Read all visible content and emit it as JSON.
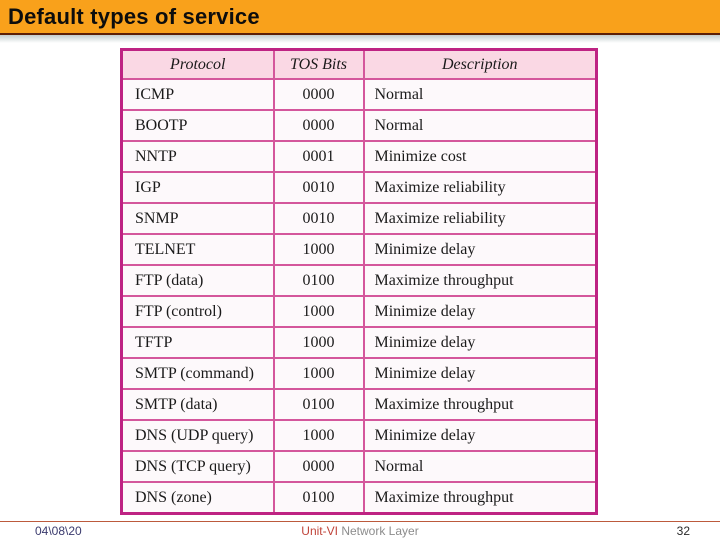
{
  "slide": {
    "title": "Default types of service",
    "colors": {
      "title_bar": "#F9A11B",
      "title_bar_edge": "#5C1E05",
      "table_border_outer": "#BE2383",
      "table_border_inner": "#D4579C",
      "table_header_bg": "#FAD8E4",
      "footer_line": "#BC5A3C",
      "footer_unit_red": "#C0443A",
      "footer_section_gray": "#8C8C8C",
      "footer_date_navy": "#3B3B6E"
    },
    "table": {
      "headers": [
        "Protocol",
        "TOS Bits",
        "Description"
      ],
      "rows": [
        [
          "ICMP",
          "0000",
          "Normal"
        ],
        [
          "BOOTP",
          "0000",
          "Normal"
        ],
        [
          "NNTP",
          "0001",
          "Minimize cost"
        ],
        [
          "IGP",
          "0010",
          "Maximize reliability"
        ],
        [
          "SNMP",
          "0010",
          "Maximize reliability"
        ],
        [
          "TELNET",
          "1000",
          "Minimize delay"
        ],
        [
          "FTP (data)",
          "0100",
          "Maximize throughput"
        ],
        [
          "FTP (control)",
          "1000",
          "Minimize delay"
        ],
        [
          "TFTP",
          "1000",
          "Minimize delay"
        ],
        [
          "SMTP (command)",
          "1000",
          "Minimize delay"
        ],
        [
          "SMTP (data)",
          "0100",
          "Maximize throughput"
        ],
        [
          "DNS (UDP query)",
          "1000",
          "Minimize delay"
        ],
        [
          "DNS (TCP query)",
          "0000",
          "Normal"
        ],
        [
          "DNS (zone)",
          "0100",
          "Maximize throughput"
        ]
      ]
    },
    "footer": {
      "date": "04\\08\\20",
      "unit": "Unit-VI",
      "section": "Network Layer",
      "page_number": "32"
    }
  }
}
